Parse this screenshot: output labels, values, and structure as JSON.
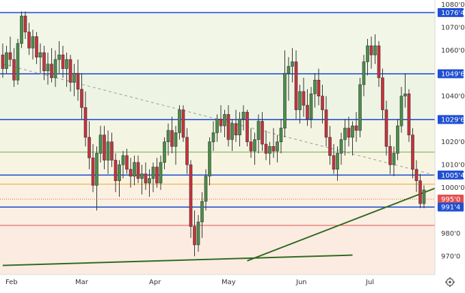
{
  "chart_data": {
    "type": "candlestick",
    "title": "",
    "xlabel": "",
    "ylabel": "",
    "ylim": [
      962,
      1082
    ],
    "y_ticks": [
      "1080'0",
      "1070'0",
      "1060'0",
      "1049'6",
      "1040'0",
      "1029'6",
      "1020'0",
      "1010'0",
      "1005'4",
      "1000'0",
      "995'0",
      "991'4",
      "980'0",
      "970'0"
    ],
    "y_tick_values": [
      1080,
      1070,
      1060,
      1049.75,
      1040,
      1029.75,
      1020,
      1010,
      1005.5,
      1000,
      995,
      991.5,
      980,
      970
    ],
    "x_labels": [
      "Feb",
      "Mar",
      "Apr",
      "May",
      "Jun",
      "Jul"
    ],
    "grid": false,
    "colors": {
      "up": "#4a8f4a",
      "down": "#c8323c",
      "support_resistance": "#1f4fd1",
      "trendline": "#2d6a1f",
      "dashed_trendline": "#999999",
      "green_level": "#6aa84f",
      "orange_level": "#f0a030",
      "red_level": "#e05050",
      "marker": "#e06060"
    },
    "horizontal_levels": [
      {
        "value": 1076.5,
        "label": "1076'4",
        "color": "#1f4fd1"
      },
      {
        "value": 1049.75,
        "label": "1049'6",
        "color": "#1f4fd1"
      },
      {
        "value": 1029.75,
        "label": "1029'6",
        "color": "#1f4fd1"
      },
      {
        "value": 1015.5,
        "label": "",
        "color": "#6aa84f"
      },
      {
        "value": 1005.5,
        "label": "1005'4",
        "color": "#1f4fd1"
      },
      {
        "value": 1001.5,
        "label": "",
        "color": "#f0a030"
      },
      {
        "value": 995,
        "label": "995'0",
        "color": "#e05050",
        "dotted": true
      },
      {
        "value": 991.5,
        "label": "991'4",
        "color": "#1f4fd1"
      },
      {
        "value": 983.5,
        "label": "",
        "color": "#e05050"
      }
    ],
    "trendlines": [
      {
        "from": [
          0,
          966
        ],
        "to": [
          93,
          970.5
        ],
        "color": "#2d6a1f"
      },
      {
        "from": [
          65,
          968
        ],
        "to": [
          172,
          1036
        ],
        "color": "#2d6a1f"
      },
      {
        "from": [
          0,
          1054
        ],
        "to": [
          180,
          978
        ],
        "color": "#999999",
        "dashed": true
      }
    ],
    "marker": {
      "x": 164,
      "y": 1024.5
    },
    "candles": [
      [
        1058,
        1063,
        1048,
        1052
      ],
      [
        1052,
        1062,
        1050,
        1059
      ],
      [
        1059,
        1066,
        1053,
        1056
      ],
      [
        1056,
        1061,
        1044,
        1047
      ],
      [
        1047,
        1065,
        1045,
        1063
      ],
      [
        1063,
        1077,
        1061,
        1075
      ],
      [
        1075,
        1077,
        1065,
        1068
      ],
      [
        1068,
        1072,
        1058,
        1061
      ],
      [
        1061,
        1069,
        1056,
        1066
      ],
      [
        1066,
        1068,
        1054,
        1057
      ],
      [
        1057,
        1063,
        1050,
        1059
      ],
      [
        1059,
        1062,
        1047,
        1051
      ],
      [
        1051,
        1059,
        1045,
        1054
      ],
      [
        1054,
        1061,
        1046,
        1048
      ],
      [
        1048,
        1060,
        1044,
        1056
      ],
      [
        1056,
        1064,
        1050,
        1058
      ],
      [
        1058,
        1062,
        1048,
        1052
      ],
      [
        1052,
        1059,
        1044,
        1056
      ],
      [
        1056,
        1058,
        1042,
        1046
      ],
      [
        1046,
        1054,
        1040,
        1050
      ],
      [
        1050,
        1056,
        1038,
        1043
      ],
      [
        1043,
        1050,
        1030,
        1035
      ],
      [
        1035,
        1042,
        1018,
        1022
      ],
      [
        1022,
        1029,
        1008,
        1013
      ],
      [
        1013,
        1019,
        998,
        1001
      ],
      [
        1001,
        1018,
        990,
        1015
      ],
      [
        1015,
        1027,
        1011,
        1023
      ],
      [
        1023,
        1027,
        1008,
        1012
      ],
      [
        1012,
        1025,
        1006,
        1020
      ],
      [
        1020,
        1024,
        1009,
        1012
      ],
      [
        1012,
        1015,
        998,
        1003
      ],
      [
        1003,
        1012,
        996,
        1010
      ],
      [
        1010,
        1016,
        1004,
        1014
      ],
      [
        1014,
        1017,
        1006,
        1008
      ],
      [
        1008,
        1013,
        1000,
        1005
      ],
      [
        1005,
        1014,
        1001,
        1011
      ],
      [
        1011,
        1014,
        1002,
        1004
      ],
      [
        1004,
        1010,
        997,
        1006
      ],
      [
        1006,
        1011,
        999,
        1002
      ],
      [
        1002,
        1008,
        996,
        1004
      ],
      [
        1004,
        1011,
        998,
        1009
      ],
      [
        1009,
        1013,
        1000,
        1002
      ],
      [
        1002,
        1014,
        999,
        1011
      ],
      [
        1011,
        1022,
        1008,
        1020
      ],
      [
        1020,
        1028,
        1014,
        1025
      ],
      [
        1025,
        1031,
        1015,
        1018
      ],
      [
        1018,
        1027,
        1010,
        1024
      ],
      [
        1024,
        1036,
        1021,
        1034
      ],
      [
        1034,
        1036,
        1020,
        1022
      ],
      [
        1022,
        1026,
        1006,
        1010
      ],
      [
        1010,
        1012,
        978,
        983
      ],
      [
        983,
        990,
        970,
        975
      ],
      [
        975,
        988,
        972,
        985
      ],
      [
        985,
        998,
        978,
        994
      ],
      [
        994,
        1008,
        990,
        1005
      ],
      [
        1005,
        1022,
        1001,
        1020
      ],
      [
        1020,
        1029,
        1016,
        1024
      ],
      [
        1024,
        1032,
        1020,
        1030
      ],
      [
        1030,
        1036,
        1024,
        1027
      ],
      [
        1027,
        1034,
        1022,
        1032
      ],
      [
        1032,
        1036,
        1018,
        1021
      ],
      [
        1021,
        1030,
        1016,
        1028
      ],
      [
        1028,
        1034,
        1020,
        1023
      ],
      [
        1023,
        1033,
        1018,
        1030
      ],
      [
        1030,
        1036,
        1025,
        1033
      ],
      [
        1033,
        1034,
        1018,
        1020
      ],
      [
        1020,
        1026,
        1013,
        1016
      ],
      [
        1016,
        1024,
        1010,
        1021
      ],
      [
        1021,
        1032,
        1015,
        1029
      ],
      [
        1029,
        1033,
        1016,
        1019
      ],
      [
        1019,
        1025,
        1012,
        1015
      ],
      [
        1015,
        1020,
        1010,
        1018
      ],
      [
        1018,
        1026,
        1013,
        1016
      ],
      [
        1016,
        1023,
        1011,
        1020
      ],
      [
        1020,
        1030,
        1015,
        1026
      ],
      [
        1026,
        1060,
        1022,
        1050
      ],
      [
        1050,
        1057,
        1038,
        1053
      ],
      [
        1053,
        1061,
        1046,
        1055
      ],
      [
        1055,
        1060,
        1030,
        1034
      ],
      [
        1034,
        1045,
        1028,
        1042
      ],
      [
        1042,
        1048,
        1031,
        1036
      ],
      [
        1036,
        1043,
        1027,
        1030
      ],
      [
        1030,
        1044,
        1026,
        1041
      ],
      [
        1041,
        1050,
        1035,
        1047
      ],
      [
        1047,
        1052,
        1036,
        1040
      ],
      [
        1040,
        1045,
        1028,
        1034
      ],
      [
        1034,
        1040,
        1018,
        1022
      ],
      [
        1022,
        1027,
        1010,
        1014
      ],
      [
        1014,
        1019,
        1006,
        1008
      ],
      [
        1008,
        1018,
        1003,
        1015
      ],
      [
        1015,
        1024,
        1010,
        1021
      ],
      [
        1021,
        1030,
        1014,
        1026
      ],
      [
        1026,
        1031,
        1018,
        1022
      ],
      [
        1022,
        1029,
        1014,
        1027
      ],
      [
        1027,
        1033,
        1020,
        1025
      ],
      [
        1025,
        1048,
        1022,
        1045
      ],
      [
        1045,
        1058,
        1040,
        1055
      ],
      [
        1055,
        1065,
        1049,
        1062
      ],
      [
        1062,
        1066,
        1052,
        1058
      ],
      [
        1058,
        1067,
        1054,
        1062
      ],
      [
        1062,
        1064,
        1044,
        1048
      ],
      [
        1048,
        1052,
        1030,
        1034
      ],
      [
        1034,
        1038,
        1014,
        1018
      ],
      [
        1018,
        1023,
        1006,
        1010
      ],
      [
        1010,
        1018,
        1005,
        1015
      ],
      [
        1015,
        1030,
        1012,
        1027
      ],
      [
        1027,
        1044,
        1024,
        1040
      ],
      [
        1040,
        1050,
        1035,
        1041
      ],
      [
        1041,
        1043,
        1020,
        1023
      ],
      [
        1023,
        1026,
        1004,
        1008
      ],
      [
        1008,
        1012,
        998,
        1003
      ],
      [
        1003,
        1006,
        991,
        993
      ],
      [
        993,
        1001,
        991,
        999
      ]
    ]
  }
}
